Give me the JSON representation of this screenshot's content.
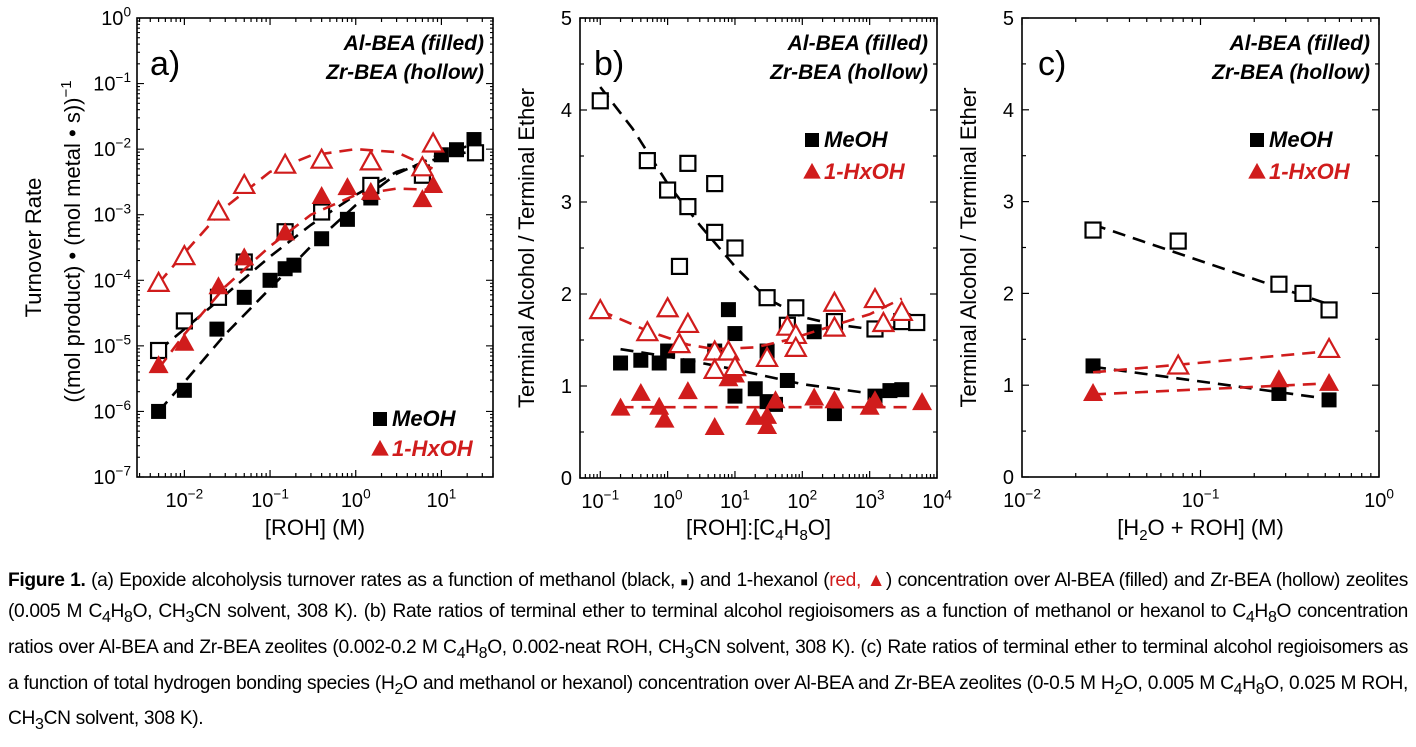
{
  "colors": {
    "red": "#d01c1c",
    "black": "#000000"
  },
  "chart_data": [
    {
      "id": "a",
      "type": "scatter",
      "panel_label": "a)",
      "title": "",
      "xlabel": "[ROH] (M)",
      "ylabel_line1": "Turnover Rate",
      "ylabel_line2": "((mol product) • (mol metal • s))",
      "ylabel_sup": "−1",
      "xscale": "log",
      "yscale": "log",
      "xlim": [
        0.0028,
        40
      ],
      "ylim": [
        1e-07,
        1
      ],
      "xticks": [
        {
          "v": 0.01,
          "b": "10",
          "e": "−2"
        },
        {
          "v": 0.1,
          "b": "10",
          "e": "−1"
        },
        {
          "v": 1,
          "b": "10",
          "e": "0"
        },
        {
          "v": 10,
          "b": "10",
          "e": "1"
        }
      ],
      "yticks": [
        {
          "v": 1,
          "b": "10",
          "e": "0"
        },
        {
          "v": 0.1,
          "b": "10",
          "e": "−1"
        },
        {
          "v": 0.01,
          "b": "10",
          "e": "−2"
        },
        {
          "v": 0.001,
          "b": "10",
          "e": "−3"
        },
        {
          "v": 0.0001,
          "b": "10",
          "e": "−4"
        },
        {
          "v": 1e-05,
          "b": "10",
          "e": "−5"
        },
        {
          "v": 1e-06,
          "b": "10",
          "e": "−6"
        },
        {
          "v": 1e-07,
          "b": "10",
          "e": "−7"
        }
      ],
      "annotation": [
        "Al-BEA (filled)",
        "Zr-BEA (hollow)"
      ],
      "legend": [
        {
          "label": "MeOH",
          "marker": "square",
          "color": "#000000"
        },
        {
          "label": "1-HxOH",
          "marker": "triangle",
          "color": "#d01c1c"
        }
      ],
      "legend_position": "bottom-right",
      "series": [
        {
          "name": "Al-BEA MeOH",
          "marker": "square",
          "filled": true,
          "color": "#000000",
          "x": [
            0.005,
            0.01,
            0.024,
            0.05,
            0.1,
            0.15,
            0.19,
            0.4,
            0.8,
            1.5,
            6,
            10,
            15,
            24
          ],
          "y": [
            1e-06,
            2.1e-06,
            1.8e-05,
            5.5e-05,
            0.0001,
            0.00015,
            0.00017,
            0.00043,
            0.00085,
            0.0018,
            0.0045,
            0.0082,
            0.0098,
            0.014
          ],
          "fit": {
            "x": [
              0.005,
              0.01,
              0.03,
              0.1,
              0.3,
              1,
              3,
              10,
              25
            ],
            "y": [
              1e-06,
              2.8e-06,
              1.5e-05,
              7.5e-05,
              0.00033,
              0.0014,
              0.0042,
              0.0085,
              0.012
            ]
          }
        },
        {
          "name": "Zr-BEA MeOH",
          "marker": "square",
          "filled": false,
          "color": "#000000",
          "x": [
            0.005,
            0.01,
            0.025,
            0.05,
            0.15,
            0.4,
            1.5,
            6,
            25
          ],
          "y": [
            8.5e-06,
            2.4e-05,
            5.5e-05,
            0.00019,
            0.00055,
            0.0011,
            0.0028,
            0.004,
            0.0088
          ],
          "fit": {
            "x": [
              0.005,
              0.01,
              0.03,
              0.1,
              0.3,
              1,
              3,
              10,
              25
            ],
            "y": [
              8.5e-06,
              1.8e-05,
              6e-05,
              0.00023,
              0.0007,
              0.002,
              0.0045,
              0.0075,
              0.0095
            ]
          }
        },
        {
          "name": "Al-BEA 1-HxOH",
          "marker": "triangle",
          "filled": true,
          "color": "#d01c1c",
          "x": [
            0.005,
            0.01,
            0.025,
            0.05,
            0.15,
            0.4,
            0.8,
            1.5,
            6,
            8
          ],
          "y": [
            5e-06,
            1.1e-05,
            8e-05,
            0.00022,
            0.00053,
            0.0019,
            0.0026,
            0.0022,
            0.0017,
            0.0028
          ],
          "fit": {
            "x": [
              0.005,
              0.01,
              0.03,
              0.1,
              0.3,
              1,
              3,
              8
            ],
            "y": [
              4.5e-06,
              1.5e-05,
              8e-05,
              0.00033,
              0.001,
              0.002,
              0.0025,
              0.0024
            ]
          }
        },
        {
          "name": "Zr-BEA 1-HxOH",
          "marker": "triangle",
          "filled": false,
          "color": "#d01c1c",
          "x": [
            0.005,
            0.01,
            0.025,
            0.05,
            0.15,
            0.4,
            1.5,
            6,
            8
          ],
          "y": [
            9e-05,
            0.00023,
            0.0011,
            0.0028,
            0.0057,
            0.0068,
            0.0064,
            0.0052,
            0.012
          ],
          "fit": {
            "x": [
              0.005,
              0.01,
              0.03,
              0.1,
              0.3,
              1,
              3,
              8
            ],
            "y": [
              9e-05,
              0.00026,
              0.0013,
              0.0045,
              0.008,
              0.01,
              0.009,
              0.005
            ]
          }
        }
      ]
    },
    {
      "id": "b",
      "type": "scatter",
      "panel_label": "b)",
      "title": "",
      "xlabel": "[ROH]:[C4H8O]",
      "ylabel": "Terminal Alcohol / Terminal Ether",
      "xscale": "log",
      "yscale": "linear",
      "xlim": [
        0.05,
        10000
      ],
      "ylim": [
        0,
        5
      ],
      "xticks": [
        {
          "v": 0.1,
          "b": "10",
          "e": "−1"
        },
        {
          "v": 1,
          "b": "10",
          "e": "0"
        },
        {
          "v": 10,
          "b": "10",
          "e": "1"
        },
        {
          "v": 100,
          "b": "10",
          "e": "2"
        },
        {
          "v": 1000,
          "b": "10",
          "e": "3"
        },
        {
          "v": 10000,
          "b": "10",
          "e": "4"
        }
      ],
      "yticks": [
        0,
        1,
        2,
        3,
        4,
        5
      ],
      "annotation": [
        "Al-BEA (filled)",
        "Zr-BEA (hollow)"
      ],
      "legend": [
        {
          "label": "MeOH",
          "marker": "square",
          "color": "#000000"
        },
        {
          "label": "1-HxOH",
          "marker": "triangle",
          "color": "#d01c1c"
        }
      ],
      "legend_position": "upper-right",
      "series": [
        {
          "name": "Al-BEA MeOH",
          "marker": "square",
          "filled": true,
          "color": "#000000",
          "x": [
            0.2,
            0.4,
            0.75,
            1.0,
            2.0,
            5,
            8,
            10,
            10,
            20,
            30,
            30,
            40,
            60,
            150,
            300,
            1200,
            2000,
            3000
          ],
          "y": [
            1.25,
            1.28,
            1.25,
            1.38,
            1.22,
            1.38,
            1.83,
            1.57,
            0.89,
            0.97,
            1.38,
            0.83,
            0.8,
            1.06,
            1.59,
            0.7,
            0.89,
            0.95,
            0.96
          ],
          "fit": {
            "x": [
              0.2,
              1,
              10,
              100,
              1000,
              3000
            ],
            "y": [
              1.4,
              1.32,
              1.18,
              1.02,
              0.92,
              0.92
            ]
          }
        },
        {
          "name": "Zr-BEA MeOH",
          "marker": "square",
          "filled": false,
          "color": "#000000",
          "x": [
            0.1,
            0.5,
            1.0,
            1.5,
            2.0,
            2.0,
            5,
            5,
            10,
            30,
            60,
            80,
            300,
            1200,
            3000,
            5000
          ],
          "y": [
            4.1,
            3.45,
            3.13,
            2.3,
            3.42,
            2.95,
            3.2,
            2.67,
            2.5,
            1.96,
            1.66,
            1.85,
            1.7,
            1.62,
            1.7,
            1.69
          ],
          "fit": {
            "x": [
              0.1,
              0.3,
              1,
              3,
              10,
              30,
              100,
              300,
              1000,
              5000
            ],
            "y": [
              4.25,
              3.8,
              3.2,
              2.75,
              2.3,
              1.95,
              1.75,
              1.67,
              1.62,
              1.65
            ]
          }
        },
        {
          "name": "Al-BEA 1-HxOH",
          "marker": "triangle",
          "filled": true,
          "color": "#d01c1c",
          "x": [
            0.2,
            0.4,
            0.75,
            0.9,
            2.0,
            5,
            8,
            10,
            20,
            30,
            30,
            40,
            150,
            300,
            1000,
            1200,
            6000
          ],
          "y": [
            0.76,
            0.92,
            0.77,
            0.63,
            0.94,
            0.55,
            1.08,
            1.12,
            0.66,
            0.67,
            0.56,
            0.84,
            0.87,
            0.84,
            0.77,
            0.84,
            0.82
          ],
          "fit": {
            "x": [
              0.2,
              1,
              10,
              100,
              1000,
              6000
            ],
            "y": [
              0.77,
              0.77,
              0.77,
              0.77,
              0.77,
              0.77
            ]
          }
        },
        {
          "name": "Zr-BEA 1-HxOH",
          "marker": "triangle",
          "filled": false,
          "color": "#d01c1c",
          "x": [
            0.1,
            0.5,
            1.0,
            1.5,
            2.0,
            5,
            5,
            8,
            10,
            30,
            60,
            80,
            80,
            300,
            300,
            1200,
            1600,
            3000
          ],
          "y": [
            1.82,
            1.58,
            1.84,
            1.45,
            1.67,
            1.37,
            1.17,
            1.37,
            1.2,
            1.3,
            1.64,
            1.55,
            1.41,
            1.9,
            1.63,
            1.94,
            1.68,
            1.8
          ],
          "fit": {
            "x": [
              0.1,
              0.5,
              2,
              5,
              20,
              60,
              200,
              1000,
              3000
            ],
            "y": [
              1.82,
              1.6,
              1.45,
              1.4,
              1.42,
              1.5,
              1.62,
              1.78,
              1.95
            ]
          }
        }
      ]
    },
    {
      "id": "c",
      "type": "scatter",
      "panel_label": "c)",
      "title": "",
      "xlabel": "[H2O + ROH] (M)",
      "ylabel": "Terminal Alcohol / Terminal Ether",
      "xscale": "log",
      "yscale": "linear",
      "xlim": [
        0.01,
        1
      ],
      "ylim": [
        0,
        5
      ],
      "xticks": [
        {
          "v": 0.01,
          "b": "10",
          "e": "−2"
        },
        {
          "v": 0.1,
          "b": "10",
          "e": "−1"
        },
        {
          "v": 1,
          "b": "10",
          "e": "0"
        }
      ],
      "yticks": [
        0,
        1,
        2,
        3,
        4,
        5
      ],
      "annotation": [
        "Al-BEA (filled)",
        "Zr-BEA (hollow)"
      ],
      "legend": [
        {
          "label": "MeOH",
          "marker": "square",
          "color": "#000000"
        },
        {
          "label": "1-HxOH",
          "marker": "triangle",
          "color": "#d01c1c"
        }
      ],
      "legend_position": "upper-right",
      "series": [
        {
          "name": "Al-BEA MeOH",
          "marker": "square",
          "filled": true,
          "color": "#000000",
          "x": [
            0.025,
            0.275,
            0.525
          ],
          "y": [
            1.21,
            0.91,
            0.84
          ],
          "fit": {
            "x": [
              0.025,
              0.525
            ],
            "y": [
              1.2,
              0.85
            ]
          }
        },
        {
          "name": "Zr-BEA MeOH",
          "marker": "square",
          "filled": false,
          "color": "#000000",
          "x": [
            0.025,
            0.075,
            0.275,
            0.375,
            0.525
          ],
          "y": [
            2.69,
            2.57,
            2.1,
            2.0,
            1.82
          ],
          "fit": {
            "x": [
              0.025,
              0.525
            ],
            "y": [
              2.75,
              1.88
            ]
          }
        },
        {
          "name": "Al-BEA 1-HxOH",
          "marker": "triangle",
          "filled": true,
          "color": "#d01c1c",
          "x": [
            0.025,
            0.275,
            0.525
          ],
          "y": [
            0.91,
            1.06,
            1.02
          ],
          "fit": {
            "x": [
              0.025,
              0.525
            ],
            "y": [
              0.9,
              1.02
            ]
          }
        },
        {
          "name": "Zr-BEA 1-HxOH",
          "marker": "triangle",
          "filled": false,
          "color": "#d01c1c",
          "x": [
            0.075,
            0.525
          ],
          "y": [
            1.21,
            1.39
          ],
          "fit": {
            "x": [
              0.025,
              0.525
            ],
            "y": [
              1.14,
              1.37
            ]
          }
        }
      ]
    }
  ],
  "caption": {
    "label": "Figure 1.",
    "seg1": " (a) Epoxide alcoholysis turnover rates as a function of methanol (black, ",
    "black_marker": "■",
    "seg2": ") and 1-hexanol (",
    "red_text": "red, ▲",
    "seg3": ") concentration over Al-BEA (filled) and Zr-BEA (hollow) zeolites (0.005 M C",
    "seg4": "H",
    "seg5": "O, CH",
    "seg6": "CN solvent, 308 K). (b) Rate ratios of terminal ether to terminal alcohol regioisomers as a function of methanol or hexanol to C",
    "seg7": "H",
    "seg8": "O concentration ratios over Al-BEA and Zr-BEA zeolites (0.002-0.2 M C",
    "seg9": "H",
    "seg10": "O, 0.002-neat ROH, CH",
    "seg11": "CN solvent, 308 K). (c) Rate ratios of terminal ether to terminal alcohol regioisomers as a function of total hydrogen bonding species (H",
    "seg12": "O and methanol or hexanol) concentration over Al-BEA and Zr-BEA zeolites (0-0.5 M H",
    "seg13": "O, 0.005 M C",
    "seg14": "H",
    "seg15": "O, 0.025 M ROH, CH",
    "seg16": "CN solvent, 308 K).",
    "sub4": "4",
    "sub8": "8",
    "sub3": "3",
    "sub2": "2"
  }
}
